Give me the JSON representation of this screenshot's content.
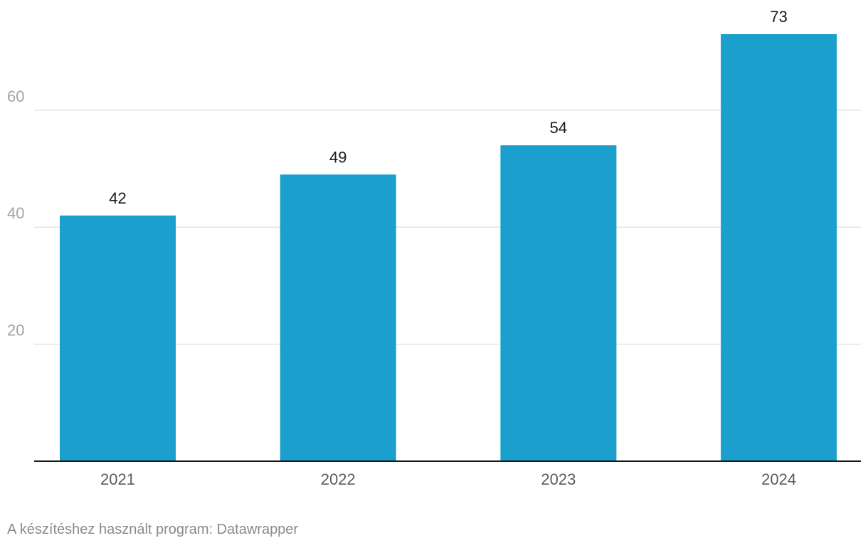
{
  "chart_data": {
    "type": "bar",
    "categories": [
      "2021",
      "2022",
      "2023",
      "2024"
    ],
    "values": [
      42,
      49,
      54,
      73
    ],
    "ylim": [
      0,
      73
    ],
    "yticks": [
      20,
      40,
      60
    ],
    "grid": true,
    "legend": "none",
    "bar_color": "#1ba0cd"
  },
  "footer": {
    "source": "A készítéshez használt program: Datawrapper"
  }
}
